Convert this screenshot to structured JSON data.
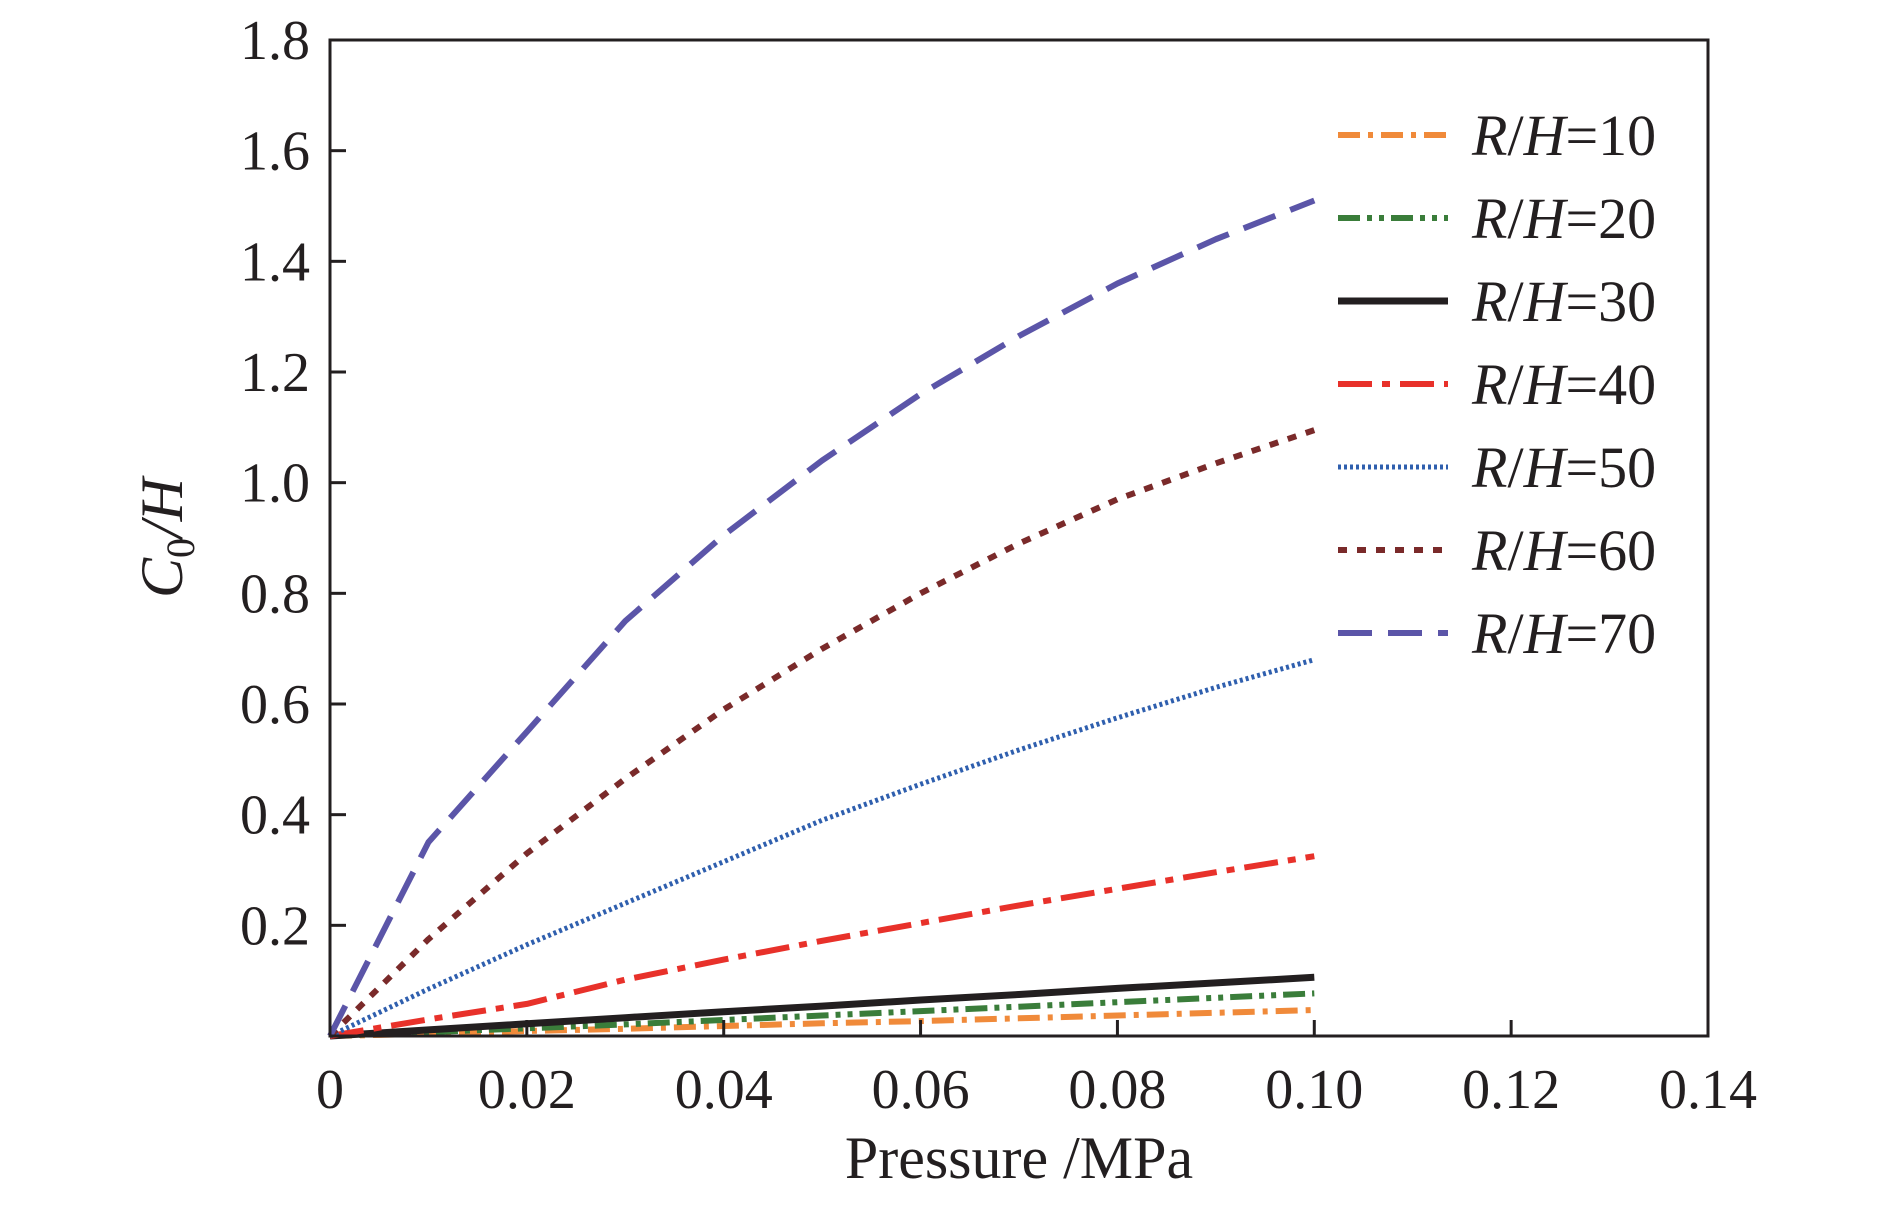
{
  "chart_data": {
    "type": "line",
    "title": "",
    "xlabel": "Pressure /MPa",
    "ylabel": {
      "main": "C",
      "sub": "0",
      "rest": "/H"
    },
    "xlim": [
      0,
      0.14
    ],
    "ylim": [
      0,
      1.8
    ],
    "xticks": [
      {
        "value": 0,
        "label": "0"
      },
      {
        "value": 0.02,
        "label": "0.02"
      },
      {
        "value": 0.04,
        "label": "0.04"
      },
      {
        "value": 0.06,
        "label": "0.06"
      },
      {
        "value": 0.08,
        "label": "0.08"
      },
      {
        "value": 0.1,
        "label": "0.10"
      },
      {
        "value": 0.12,
        "label": "0.12"
      },
      {
        "value": 0.14,
        "label": "0.14"
      }
    ],
    "yticks": [
      {
        "value": 0.2,
        "label": "0.2"
      },
      {
        "value": 0.4,
        "label": "0.4"
      },
      {
        "value": 0.6,
        "label": "0.6"
      },
      {
        "value": 0.8,
        "label": "0.8"
      },
      {
        "value": 1.0,
        "label": "1.0"
      },
      {
        "value": 1.2,
        "label": "1.2"
      },
      {
        "value": 1.4,
        "label": "1.4"
      },
      {
        "value": 1.6,
        "label": "1.6"
      },
      {
        "value": 1.8,
        "label": "1.8"
      }
    ],
    "grid": false,
    "legend_position": "top-right",
    "x": [
      0,
      0.01,
      0.02,
      0.03,
      0.04,
      0.05,
      0.06,
      0.07,
      0.08,
      0.09,
      0.1
    ],
    "series": [
      {
        "name": "R/H=10",
        "name_parts": {
          "r": "R",
          "slash": "/",
          "h": "H",
          "val": "=10"
        },
        "color": "#f08a3a",
        "dash": "dashdot",
        "values": [
          0,
          0.004,
          0.009,
          0.013,
          0.018,
          0.023,
          0.027,
          0.032,
          0.037,
          0.042,
          0.047
        ]
      },
      {
        "name": "R/H=20",
        "name_parts": {
          "r": "R",
          "slash": "/",
          "h": "H",
          "val": "=20"
        },
        "color": "#3a7d3a",
        "dash": "dashdotdot",
        "values": [
          0,
          0.007,
          0.014,
          0.021,
          0.029,
          0.037,
          0.045,
          0.053,
          0.061,
          0.069,
          0.077
        ]
      },
      {
        "name": "R/H=30",
        "name_parts": {
          "r": "R",
          "slash": "/",
          "h": "H",
          "val": "=30"
        },
        "color": "#231f20",
        "dash": "solid",
        "values": [
          0,
          0.011,
          0.022,
          0.033,
          0.044,
          0.054,
          0.065,
          0.075,
          0.086,
          0.096,
          0.106
        ]
      },
      {
        "name": "R/H=40",
        "name_parts": {
          "r": "R",
          "slash": "/",
          "h": "H",
          "val": "=40"
        },
        "color": "#e8312a",
        "dash": "longdashdot",
        "values": [
          0,
          0.03,
          0.058,
          0.102,
          0.138,
          0.172,
          0.204,
          0.236,
          0.266,
          0.296,
          0.325
        ]
      },
      {
        "name": "R/H=50",
        "name_parts": {
          "r": "R",
          "slash": "/",
          "h": "H",
          "val": "=50"
        },
        "color": "#2f5fae",
        "dash": "densedot",
        "values": [
          0,
          0.085,
          0.165,
          0.24,
          0.315,
          0.39,
          0.455,
          0.517,
          0.575,
          0.63,
          0.68
        ]
      },
      {
        "name": "R/H=60",
        "name_parts": {
          "r": "R",
          "slash": "/",
          "h": "H",
          "val": "=60"
        },
        "color": "#7a2a2a",
        "dash": "dotted",
        "values": [
          0,
          0.175,
          0.33,
          0.465,
          0.59,
          0.7,
          0.8,
          0.89,
          0.97,
          1.035,
          1.095
        ]
      },
      {
        "name": "R/H=70",
        "name_parts": {
          "r": "R",
          "slash": "/",
          "h": "H",
          "val": "=70"
        },
        "color": "#5b55a8",
        "dash": "dashed",
        "values": [
          0,
          0.35,
          0.55,
          0.75,
          0.905,
          1.04,
          1.16,
          1.265,
          1.36,
          1.44,
          1.51
        ]
      }
    ]
  }
}
